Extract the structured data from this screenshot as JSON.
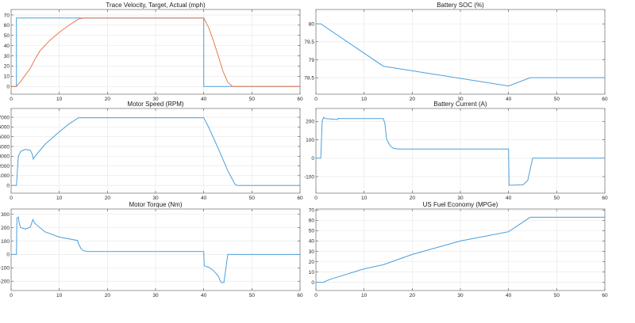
{
  "chart_data": [
    {
      "type": "line",
      "title": "Trace Velocity, Target, Actual (mph)",
      "xlim": [
        0,
        60
      ],
      "ylim": [
        -7.6,
        75.4
      ],
      "xticks": [
        0,
        10,
        20,
        30,
        40,
        50,
        60
      ],
      "yticks": [
        0,
        10,
        20,
        30,
        40,
        50,
        60,
        70
      ],
      "grid": true,
      "series": [
        {
          "color": "#4a9fdc",
          "points": [
            [
              0,
              0
            ],
            [
              1.1,
              0
            ],
            [
              1.1,
              67
            ],
            [
              40,
              67
            ],
            [
              40,
              0
            ],
            [
              60,
              0
            ]
          ]
        },
        {
          "color": "#e87a4f",
          "points": [
            [
              0,
              0
            ],
            [
              1.1,
              0
            ],
            [
              2,
              5
            ],
            [
              4,
              18
            ],
            [
              5,
              27
            ],
            [
              6,
              35
            ],
            [
              8,
              45
            ],
            [
              10,
              53
            ],
            [
              12,
              60
            ],
            [
              14,
              66
            ],
            [
              15,
              67
            ],
            [
              40,
              67
            ],
            [
              41,
              58
            ],
            [
              42,
              45
            ],
            [
              43,
              30
            ],
            [
              44,
              15
            ],
            [
              45,
              4
            ],
            [
              46,
              0
            ],
            [
              60,
              0
            ]
          ]
        }
      ]
    },
    {
      "type": "line",
      "title": "Battery SOC (%)",
      "xlim": [
        0,
        60
      ],
      "ylim": [
        78.04,
        80.4
      ],
      "xticks": [
        0,
        10,
        20,
        30,
        40,
        50,
        60
      ],
      "yticks": [
        78.5,
        79,
        79.5,
        80
      ],
      "grid": true,
      "series": [
        {
          "color": "#4a9fdc",
          "points": [
            [
              0,
              80
            ],
            [
              1,
              80
            ],
            [
              14,
              78.82
            ],
            [
              40,
              78.27
            ],
            [
              44.5,
              78.5
            ],
            [
              60,
              78.5
            ]
          ]
        }
      ]
    },
    {
      "type": "line",
      "title": "Motor Speed (RPM)",
      "xlim": [
        0,
        60
      ],
      "ylim": [
        -800,
        7900
      ],
      "xticks": [
        0,
        10,
        20,
        30,
        40,
        50,
        60
      ],
      "yticks": [
        0,
        1000,
        2000,
        3000,
        4000,
        5000,
        6000,
        7000
      ],
      "grid": true,
      "series": [
        {
          "color": "#4a9fdc",
          "points": [
            [
              0,
              0
            ],
            [
              1.1,
              0
            ],
            [
              1.2,
              700
            ],
            [
              1.5,
              3000
            ],
            [
              2,
              3500
            ],
            [
              3,
              3700
            ],
            [
              4,
              3600
            ],
            [
              4.4,
              3200
            ],
            [
              4.6,
              2700
            ],
            [
              5,
              3000
            ],
            [
              7,
              4200
            ],
            [
              10,
              5500
            ],
            [
              12,
              6300
            ],
            [
              14,
              6950
            ],
            [
              40,
              6950
            ],
            [
              41,
              6000
            ],
            [
              43,
              3800
            ],
            [
              45,
              1500
            ],
            [
              46.5,
              100
            ],
            [
              47,
              0
            ],
            [
              60,
              0
            ]
          ]
        }
      ]
    },
    {
      "type": "line",
      "title": "Battery Current (A)",
      "xlim": [
        0,
        60
      ],
      "ylim": [
        -190,
        270
      ],
      "xticks": [
        0,
        10,
        20,
        30,
        40,
        50,
        60
      ],
      "yticks": [
        -100,
        0,
        100,
        200
      ],
      "grid": true,
      "series": [
        {
          "color": "#4a9fdc",
          "points": [
            [
              0,
              0
            ],
            [
              1,
              0
            ],
            [
              1.3,
              200
            ],
            [
              1.6,
              222
            ],
            [
              2,
              215
            ],
            [
              4.5,
              210
            ],
            [
              4.6,
              216
            ],
            [
              5,
              215
            ],
            [
              14,
              215
            ],
            [
              14.3,
              190
            ],
            [
              14.7,
              100
            ],
            [
              15.5,
              65
            ],
            [
              16,
              55
            ],
            [
              17,
              50
            ],
            [
              40,
              50
            ],
            [
              40.1,
              -147
            ],
            [
              43,
              -145
            ],
            [
              44,
              -120
            ],
            [
              44.5,
              -60
            ],
            [
              45,
              0
            ],
            [
              60,
              0
            ]
          ]
        }
      ]
    },
    {
      "type": "line",
      "title": "Motor Torque (Nm)",
      "xlim": [
        0,
        60
      ],
      "ylim": [
        -270,
        340
      ],
      "xticks": [
        0,
        10,
        20,
        30,
        40,
        50,
        60
      ],
      "yticks": [
        -200,
        -100,
        0,
        100,
        200,
        300
      ],
      "grid": true,
      "series": [
        {
          "color": "#4a9fdc",
          "points": [
            [
              0,
              0
            ],
            [
              1.1,
              0
            ],
            [
              1.2,
              270
            ],
            [
              1.5,
              280
            ],
            [
              1.7,
              230
            ],
            [
              2,
              200
            ],
            [
              3,
              190
            ],
            [
              4,
              205
            ],
            [
              4.5,
              260
            ],
            [
              5,
              230
            ],
            [
              7,
              170
            ],
            [
              10,
              130
            ],
            [
              13.8,
              105
            ],
            [
              14,
              80
            ],
            [
              14.5,
              45
            ],
            [
              15,
              28
            ],
            [
              16,
              22
            ],
            [
              40,
              22
            ],
            [
              40.1,
              -85
            ],
            [
              41,
              -95
            ],
            [
              42,
              -120
            ],
            [
              43,
              -160
            ],
            [
              43.6,
              -210
            ],
            [
              44.2,
              -210
            ],
            [
              45,
              0
            ],
            [
              60,
              0
            ]
          ]
        }
      ]
    },
    {
      "type": "line",
      "title": "US Fuel Economy (MPGe)",
      "xlim": [
        0,
        60
      ],
      "ylim": [
        -8,
        71
      ],
      "xticks": [
        0,
        10,
        20,
        30,
        40,
        50,
        60
      ],
      "yticks": [
        0,
        10,
        20,
        30,
        40,
        50,
        60,
        70
      ],
      "grid": true,
      "series": [
        {
          "color": "#4a9fdc",
          "points": [
            [
              0,
              0
            ],
            [
              1.5,
              0
            ],
            [
              3,
              3
            ],
            [
              10,
              13
            ],
            [
              14,
              17
            ],
            [
              20,
              27
            ],
            [
              30,
              40
            ],
            [
              40,
              49
            ],
            [
              44.5,
              63
            ],
            [
              60,
              63
            ]
          ]
        }
      ]
    }
  ]
}
